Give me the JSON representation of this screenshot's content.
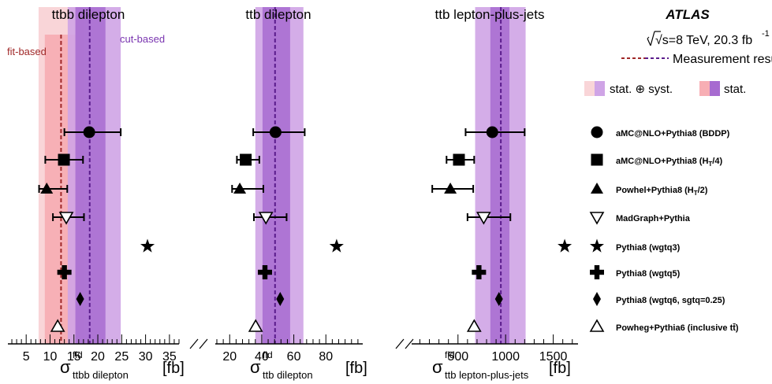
{
  "chart_data": {
    "type": "scatter",
    "experiment": "ATLAS",
    "energy_label": "√s=8 TeV, 20.3 fb",
    "energy_sup": "-1",
    "generators": [
      "aMC@NLO+Pythia8 (BDDP)",
      "aMC@NLO+Pythia8 (H",
      "Powhel+Pythia8 (H",
      "MadGraph+Pythia",
      "Pythia8 (wgtq3)",
      "Pythia8 (wgtq5)",
      "Pythia8 (wgtq6, sgtq=0.25)",
      "Powheg+Pythia6 (inclusive t"
    ],
    "generator_suffix": [
      "",
      "/4)",
      "/2)",
      "",
      "",
      "",
      "",
      "t̄)"
    ],
    "generator_sub": [
      "",
      "T",
      "T",
      "",
      "",
      "",
      "",
      ""
    ],
    "markers": [
      "circle",
      "square",
      "triangle-up",
      "triangle-down-open",
      "star",
      "cross",
      "diamond",
      "triangle-up-open"
    ],
    "legend": {
      "measurement": "Measurement results",
      "stat_syst": "stat. ⊕ syst.",
      "stat": "stat."
    },
    "colors": {
      "fit_total": "#f9d5d8",
      "fit_stat": "#f7aeb4",
      "fit_line": "#a02828",
      "cut_total": "#cfa4e6",
      "cut_stat": "#a76bd0",
      "cut_line": "#5a1c8c"
    },
    "panels": [
      {
        "title": "ttbb dilepton",
        "xlabel_main": "σ",
        "xlabel_sup": "fid",
        "xlabel_sub": "ttbb dilepton",
        "xlabel_unit": "[fb]",
        "xlim": [
          1.5,
          37
        ],
        "ticks": [
          "5",
          "10",
          "15",
          "20",
          "25",
          "30",
          "35"
        ],
        "tick_values": [
          5,
          10,
          15,
          20,
          25,
          30,
          35
        ],
        "fit_based": {
          "label": "fit-based",
          "value": 12.3,
          "stat": [
            8.9,
            15.8
          ],
          "total": [
            7.6,
            17.0
          ]
        },
        "cut_based": {
          "label": "cut-based",
          "value": 18.3,
          "stat": [
            15.3,
            21.6
          ],
          "total": [
            13.7,
            24.8
          ]
        },
        "predictions": [
          {
            "value": 18.2,
            "err": [
              13.0,
              24.8
            ]
          },
          {
            "value": 12.9,
            "err": [
              9.0,
              16.9
            ]
          },
          {
            "value": 9.3,
            "err": [
              7.7,
              13.6
            ]
          },
          {
            "value": 13.4,
            "err": [
              10.6,
              17.1
            ]
          },
          {
            "value": 30.4,
            "err": null
          },
          {
            "value": 13.0,
            "err": null
          },
          {
            "value": 16.3,
            "err": null
          },
          {
            "value": 11.6,
            "err": null
          }
        ]
      },
      {
        "title": "ttb dilepton",
        "xlabel_main": "σ",
        "xlabel_sup": "fid",
        "xlabel_sub": "ttb dilepton",
        "xlabel_unit": "[fb]",
        "xlim": [
          12,
          103
        ],
        "ticks": [
          "20",
          "40",
          "60",
          "80"
        ],
        "tick_values": [
          20,
          40,
          60,
          80
        ],
        "cut_based": {
          "value": 48.3,
          "stat": [
            40.5,
            57.7
          ],
          "total": [
            36.0,
            66.0
          ]
        },
        "predictions": [
          {
            "value": 48.6,
            "err": [
              34.7,
              66.8
            ]
          },
          {
            "value": 30.0,
            "err": [
              24.5,
              38.5
            ]
          },
          {
            "value": 26.3,
            "err": [
              21.5,
              41.0
            ]
          },
          {
            "value": 42.6,
            "err": [
              35.1,
              55.5
            ]
          },
          {
            "value": 86.7,
            "err": null
          },
          {
            "value": 42.0,
            "err": null
          },
          {
            "value": 51.5,
            "err": null
          },
          {
            "value": 36.2,
            "err": null
          }
        ]
      },
      {
        "title": "ttb lepton-plus-jets",
        "xlabel_main": "σ",
        "xlabel_sup": "fid",
        "xlabel_sub": "ttb lepton-plus-jets",
        "xlabel_unit": "[fb]",
        "xlim": [
          30,
          1760
        ],
        "ticks": [
          "500",
          "1000",
          "1500"
        ],
        "tick_values": [
          500,
          1000,
          1500
        ],
        "cut_based": {
          "value": 950,
          "stat": [
            840,
            1040
          ],
          "total": [
            680,
            1210
          ]
        },
        "predictions": [
          {
            "value": 860,
            "err": [
              580,
              1200
            ]
          },
          {
            "value": 510,
            "err": [
              380,
              670
            ]
          },
          {
            "value": 420,
            "err": [
              230,
              660
            ]
          },
          {
            "value": 770,
            "err": [
              600,
              1050
            ]
          },
          {
            "value": 1620,
            "err": null
          },
          {
            "value": 720,
            "err": null
          },
          {
            "value": 930,
            "err": null
          },
          {
            "value": 670,
            "err": null
          }
        ]
      }
    ]
  }
}
